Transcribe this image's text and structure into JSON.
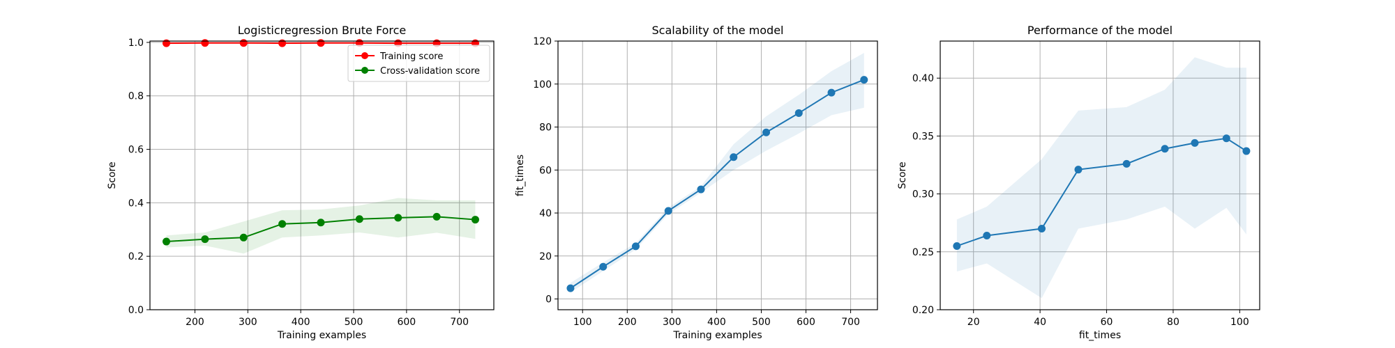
{
  "chart_data": [
    {
      "type": "line",
      "title": "Logisticregression Brute Force",
      "xlabel": "Training examples",
      "ylabel": "Score",
      "xlim": [
        115,
        765
      ],
      "ylim": [
        0,
        1.005
      ],
      "xticks": [
        200,
        300,
        400,
        500,
        600,
        700
      ],
      "yticks": [
        0.0,
        0.2,
        0.4,
        0.6,
        0.8,
        1.0
      ],
      "ytick_labels": [
        "0.0",
        "0.2",
        "0.4",
        "0.6",
        "0.8",
        "1.0"
      ],
      "grid": true,
      "legend": "top-right",
      "x": [
        146,
        219,
        292,
        365,
        438,
        511,
        584,
        657,
        730
      ],
      "series": [
        {
          "name": "Training score",
          "color": "#ff0000",
          "values": [
            0.997,
            0.998,
            0.998,
            0.997,
            0.998,
            0.998,
            0.997,
            0.997,
            0.997
          ],
          "band_lower": [
            0.995,
            0.996,
            0.996,
            0.995,
            0.996,
            0.996,
            0.995,
            0.995,
            0.995
          ],
          "band_upper": [
            0.999,
            1.0,
            1.0,
            0.999,
            1.0,
            1.0,
            0.999,
            0.999,
            0.999
          ],
          "band_color": "#ff0000"
        },
        {
          "name": "Cross-validation score",
          "color": "#008000",
          "values": [
            0.255,
            0.264,
            0.27,
            0.321,
            0.326,
            0.339,
            0.344,
            0.348,
            0.337
          ],
          "band_lower": [
            0.233,
            0.24,
            0.21,
            0.27,
            0.278,
            0.289,
            0.27,
            0.288,
            0.265
          ],
          "band_upper": [
            0.278,
            0.289,
            0.33,
            0.372,
            0.375,
            0.39,
            0.418,
            0.409,
            0.409
          ],
          "band_color": "#008000"
        }
      ]
    },
    {
      "type": "line",
      "title": "Scalability of the model",
      "xlabel": "Training examples",
      "ylabel": "fit_times",
      "xlim": [
        45,
        760
      ],
      "ylim": [
        -5,
        120
      ],
      "xticks": [
        100,
        200,
        300,
        400,
        500,
        600,
        700
      ],
      "yticks": [
        0,
        20,
        40,
        60,
        80,
        100,
        120
      ],
      "ytick_labels": [
        "0",
        "20",
        "40",
        "60",
        "80",
        "100",
        "120"
      ],
      "grid": true,
      "x": [
        73,
        146,
        219,
        292,
        365,
        438,
        511,
        584,
        657,
        730
      ],
      "series": [
        {
          "name": "fit_times",
          "color": "#1f77b4",
          "values": [
            5,
            15,
            24.5,
            41,
            51,
            66,
            77.5,
            86.5,
            96,
            102
          ],
          "band_lower": [
            3,
            13,
            23,
            39.5,
            49.5,
            60,
            69,
            77,
            85.5,
            89
          ],
          "band_upper": [
            7.5,
            17,
            26,
            42.5,
            52.5,
            72,
            85,
            95,
            106,
            114.5
          ],
          "band_color": "#1f77b4"
        }
      ]
    },
    {
      "type": "line",
      "title": "Performance of the model",
      "xlabel": "fit_times",
      "ylabel": "Score",
      "xlim": [
        10,
        106
      ],
      "ylim": [
        0.2,
        0.432
      ],
      "xticks": [
        20,
        40,
        60,
        80,
        100
      ],
      "yticks": [
        0.2,
        0.25,
        0.3,
        0.35,
        0.4
      ],
      "ytick_labels": [
        "0.20",
        "0.25",
        "0.30",
        "0.35",
        "0.40"
      ],
      "grid": true,
      "x": [
        15,
        24,
        40.5,
        51.5,
        66,
        77.5,
        86.5,
        96,
        102
      ],
      "series": [
        {
          "name": "Score",
          "color": "#1f77b4",
          "values": [
            0.255,
            0.264,
            0.27,
            0.321,
            0.326,
            0.339,
            0.344,
            0.348,
            0.337
          ],
          "band_lower": [
            0.233,
            0.24,
            0.21,
            0.27,
            0.278,
            0.289,
            0.27,
            0.288,
            0.265
          ],
          "band_upper": [
            0.278,
            0.289,
            0.33,
            0.372,
            0.375,
            0.39,
            0.418,
            0.409,
            0.409
          ],
          "band_color": "#1f77b4"
        }
      ]
    }
  ]
}
